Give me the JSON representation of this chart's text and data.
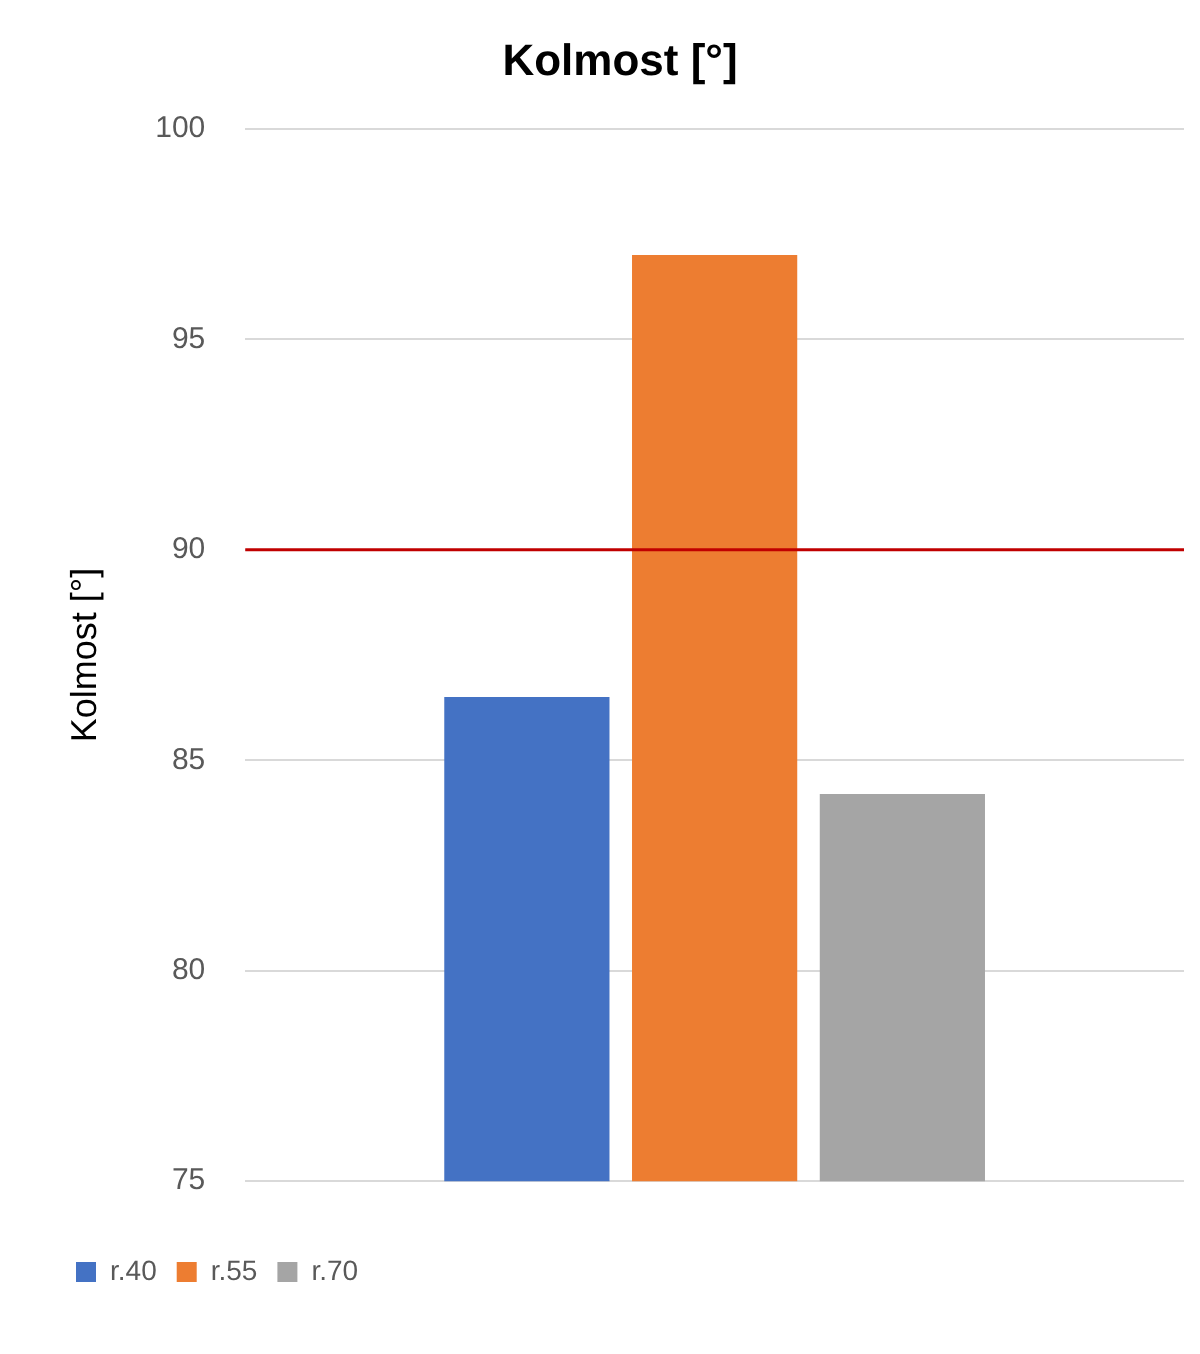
{
  "chart_data": {
    "type": "bar",
    "title": "Kolmost [°]",
    "ylabel": "Kolmost [°]",
    "categories": [
      null
    ],
    "series": [
      {
        "name": "r.40",
        "color": "#4472c4",
        "values": [
          86.5
        ]
      },
      {
        "name": "r.55",
        "color": "#ed7d31",
        "values": [
          97
        ]
      },
      {
        "name": "r.70",
        "color": "#a5a5a5",
        "values": [
          84.2
        ]
      }
    ],
    "ylim": [
      75,
      100
    ],
    "yticks": [
      75,
      80,
      85,
      90,
      95,
      100
    ],
    "grid": "y",
    "legend": "bottom left",
    "ref_lines": [
      {
        "axis": "y",
        "value": 90,
        "color": "#c00000"
      }
    ]
  }
}
